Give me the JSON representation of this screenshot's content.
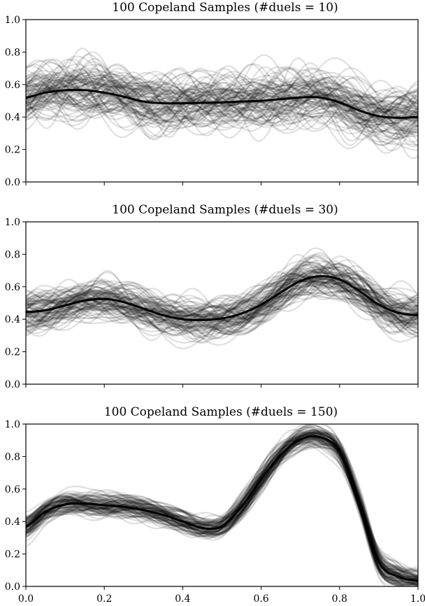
{
  "chart_data": [
    {
      "type": "line",
      "title": "100 Copeland Samples (#duels = 10)",
      "xlabel": "",
      "ylabel": "",
      "xlim": [
        0,
        1
      ],
      "ylim": [
        0,
        1
      ],
      "xticks": [
        "",
        "",
        "",
        "",
        "",
        ""
      ],
      "yticks": [
        "0.0",
        "0.2",
        "0.4",
        "0.6",
        "0.8",
        "1.0"
      ],
      "grid": false,
      "sample_count": 100,
      "sample_spread": 0.13,
      "sample_color": "#000000",
      "mean_color": "#000000",
      "mean": {
        "x": [
          0.0,
          0.05,
          0.1,
          0.15,
          0.2,
          0.25,
          0.3,
          0.35,
          0.4,
          0.45,
          0.5,
          0.55,
          0.6,
          0.65,
          0.7,
          0.75,
          0.8,
          0.85,
          0.9,
          0.95,
          1.0
        ],
        "y": [
          0.52,
          0.55,
          0.565,
          0.565,
          0.55,
          0.525,
          0.495,
          0.485,
          0.485,
          0.487,
          0.49,
          0.495,
          0.5,
          0.51,
          0.52,
          0.52,
          0.49,
          0.44,
          0.405,
          0.395,
          0.4
        ]
      }
    },
    {
      "type": "line",
      "title": "100 Copeland Samples (#duels = 30)",
      "xlabel": "",
      "ylabel": "",
      "xlim": [
        0,
        1
      ],
      "ylim": [
        0,
        1
      ],
      "xticks": [
        "",
        "",
        "",
        "",
        "",
        ""
      ],
      "yticks": [
        "0.0",
        "0.2",
        "0.4",
        "0.6",
        "0.8",
        "1.0"
      ],
      "grid": false,
      "sample_count": 100,
      "sample_spread": 0.1,
      "sample_color": "#000000",
      "mean_color": "#000000",
      "mean": {
        "x": [
          0.0,
          0.05,
          0.1,
          0.15,
          0.2,
          0.25,
          0.3,
          0.35,
          0.4,
          0.45,
          0.5,
          0.55,
          0.6,
          0.65,
          0.7,
          0.75,
          0.8,
          0.85,
          0.9,
          0.95,
          1.0
        ],
        "y": [
          0.445,
          0.455,
          0.485,
          0.515,
          0.525,
          0.505,
          0.465,
          0.425,
          0.4,
          0.395,
          0.405,
          0.435,
          0.49,
          0.565,
          0.635,
          0.665,
          0.645,
          0.575,
          0.49,
          0.44,
          0.425
        ]
      }
    },
    {
      "type": "line",
      "title": "100 Copeland Samples (#duels = 150)",
      "xlabel": "",
      "ylabel": "",
      "xlim": [
        0,
        1
      ],
      "ylim": [
        0,
        1
      ],
      "xticks": [
        "0.0",
        "0.2",
        "0.4",
        "0.6",
        "0.8",
        "1.0"
      ],
      "yticks": [
        "0.0",
        "0.2",
        "0.4",
        "0.6",
        "0.8",
        "1.0"
      ],
      "grid": false,
      "sample_count": 100,
      "sample_spread": 0.055,
      "sample_color": "#000000",
      "mean_color": "#000000",
      "mean": {
        "x": [
          0.0,
          0.05,
          0.1,
          0.15,
          0.2,
          0.25,
          0.3,
          0.35,
          0.4,
          0.45,
          0.5,
          0.55,
          0.6,
          0.65,
          0.7,
          0.75,
          0.8,
          0.85,
          0.9,
          0.95,
          1.0
        ],
        "y": [
          0.37,
          0.46,
          0.505,
          0.51,
          0.5,
          0.49,
          0.47,
          0.44,
          0.4,
          0.36,
          0.37,
          0.49,
          0.66,
          0.81,
          0.905,
          0.92,
          0.83,
          0.52,
          0.15,
          0.06,
          0.035
        ]
      }
    }
  ]
}
